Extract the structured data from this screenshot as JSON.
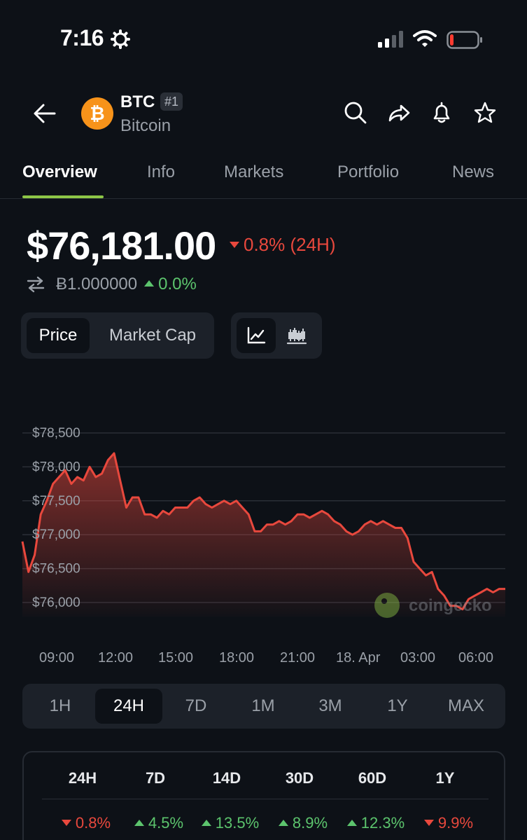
{
  "status": {
    "time": "7:16"
  },
  "header": {
    "symbol": "BTC",
    "rank": "#1",
    "name": "Bitcoin"
  },
  "tabs": [
    "Overview",
    "Info",
    "Markets",
    "Portfolio",
    "News"
  ],
  "price": {
    "value": "$76,181.00",
    "change": "0.8% (24H)",
    "btc_value": "Ƀ1.000000",
    "btc_change": "0.0%"
  },
  "chart_toggle": {
    "price": "Price",
    "market_cap": "Market Cap"
  },
  "chart_data": {
    "type": "area",
    "y_ticks": [
      "$78,500",
      "$78,000",
      "$77,500",
      "$77,000",
      "$76,500",
      "$76,000"
    ],
    "x_ticks": [
      "09:00",
      "12:00",
      "15:00",
      "18:00",
      "21:00",
      "18. Apr",
      "03:00",
      "06:00"
    ],
    "ylim": [
      75800,
      78800
    ],
    "series": [
      {
        "values": [
          76900,
          76450,
          76700,
          77300,
          77500,
          77750,
          77850,
          77950,
          77750,
          77850,
          77800,
          78000,
          77850,
          77900,
          78100,
          78200,
          77800,
          77400,
          77550,
          77550,
          77300,
          77300,
          77250,
          77350,
          77300,
          77400,
          77400,
          77400,
          77500,
          77550,
          77450,
          77400,
          77450,
          77500,
          77450,
          77500,
          77400,
          77300,
          77050,
          77050,
          77150,
          77150,
          77200,
          77150,
          77200,
          77300,
          77300,
          77250,
          77300,
          77350,
          77300,
          77200,
          77150,
          77050,
          77000,
          77050,
          77150,
          77200,
          77150,
          77200,
          77150,
          77100,
          77100,
          76950,
          76600,
          76500,
          76400,
          76450,
          76200,
          76100,
          75950,
          75950,
          75900,
          76050,
          76100,
          76150,
          76200,
          76150,
          76200,
          76200
        ]
      }
    ],
    "accent": "#e8483d"
  },
  "watermark": "coingecko",
  "ranges": [
    "1H",
    "24H",
    "7D",
    "1M",
    "3M",
    "1Y",
    "MAX"
  ],
  "active_range": "24H",
  "performance": {
    "headers": [
      "24H",
      "7D",
      "14D",
      "30D",
      "60D",
      "1Y"
    ],
    "values": [
      {
        "text": "0.8%",
        "dir": "down"
      },
      {
        "text": "4.5%",
        "dir": "up"
      },
      {
        "text": "13.5%",
        "dir": "up"
      },
      {
        "text": "8.9%",
        "dir": "up"
      },
      {
        "text": "12.3%",
        "dir": "up"
      },
      {
        "text": "9.9%",
        "dir": "down"
      }
    ]
  }
}
